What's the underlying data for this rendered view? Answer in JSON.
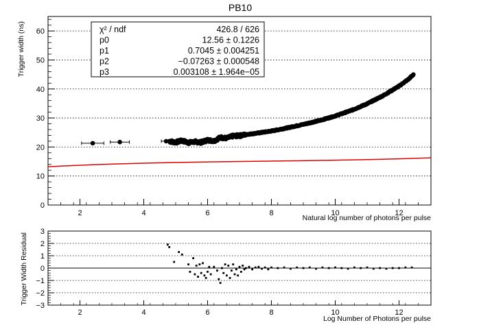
{
  "chart_data": [
    {
      "type": "scatter",
      "title": "PB10",
      "xlabel": "Natural log number of photons per pulse",
      "ylabel": "Trigger width (ns)",
      "xlim": [
        1,
        13
      ],
      "ylim": [
        0,
        65
      ],
      "xticks": [
        2,
        4,
        6,
        8,
        10,
        12
      ],
      "yticks": [
        0,
        10,
        20,
        30,
        40,
        50,
        60
      ],
      "grid": "horizontal-dotted",
      "fit": {
        "color": "#e00000",
        "model": "cubic",
        "params": [
          12.56,
          0.7045,
          -0.07263,
          0.003108
        ],
        "x_range": [
          1,
          13
        ]
      },
      "stats_box": {
        "placement": "top-left",
        "rows": [
          {
            "label": "χ² / ndf",
            "value": "426.8 / 626"
          },
          {
            "label": "p0",
            "value": "12.56 ± 0.1226"
          },
          {
            "label": "p1",
            "value": "0.7045 ± 0.004251"
          },
          {
            "label": "p2",
            "value": "−0.07263 ± 0.000548"
          },
          {
            "label": "p3",
            "value": "0.003108 ± 1.964e−05"
          }
        ]
      },
      "outliers": [
        {
          "x": 2.4,
          "y": 21.3,
          "xerr": 0.35
        },
        {
          "x": 3.25,
          "y": 21.7,
          "xerr": 0.3
        },
        {
          "x": 4.7,
          "y": 22.0,
          "xerr": 0.15
        }
      ],
      "band_points": [
        [
          4.8,
          22.0
        ],
        [
          5.0,
          21.6
        ],
        [
          5.2,
          22.2
        ],
        [
          5.4,
          21.5
        ],
        [
          5.6,
          21.8
        ],
        [
          5.8,
          21.6
        ],
        [
          6.0,
          22.4
        ],
        [
          6.2,
          22.1
        ],
        [
          6.4,
          23.3
        ],
        [
          6.6,
          23.0
        ],
        [
          6.8,
          23.8
        ],
        [
          7.0,
          23.9
        ],
        [
          7.2,
          24.3
        ],
        [
          7.5,
          24.7
        ],
        [
          8.0,
          25.5
        ],
        [
          8.5,
          26.6
        ],
        [
          9.0,
          27.8
        ],
        [
          9.5,
          29.1
        ],
        [
          10.0,
          30.7
        ],
        [
          10.5,
          32.6
        ],
        [
          11.0,
          34.9
        ],
        [
          11.5,
          37.7
        ],
        [
          12.0,
          41.0
        ],
        [
          12.3,
          43.4
        ],
        [
          12.45,
          45.0
        ]
      ]
    },
    {
      "type": "scatter",
      "xlabel": "Log Number of Photons per pulse",
      "ylabel": "Trigger Width Residual",
      "xlim": [
        1,
        13
      ],
      "ylim": [
        -3,
        3
      ],
      "xticks": [
        2,
        4,
        6,
        8,
        10,
        12
      ],
      "yticks": [
        -3,
        -2,
        -1,
        0,
        1,
        2,
        3
      ],
      "grid": "horizontal-dotted",
      "zero_line": true,
      "points": [
        [
          4.75,
          1.9
        ],
        [
          4.8,
          1.7
        ],
        [
          4.95,
          0.5
        ],
        [
          5.1,
          1.3
        ],
        [
          5.2,
          1.1
        ],
        [
          5.4,
          0.3
        ],
        [
          5.45,
          -0.3
        ],
        [
          5.55,
          0.8
        ],
        [
          5.6,
          -0.5
        ],
        [
          5.65,
          0.2
        ],
        [
          5.7,
          -0.7
        ],
        [
          5.75,
          0.3
        ],
        [
          5.8,
          -0.4
        ],
        [
          5.85,
          0.4
        ],
        [
          5.9,
          -0.6
        ],
        [
          5.95,
          -0.8
        ],
        [
          6.0,
          -0.3
        ],
        [
          6.05,
          0.1
        ],
        [
          6.1,
          -0.5
        ],
        [
          6.2,
          0.1
        ],
        [
          6.3,
          -0.2
        ],
        [
          6.35,
          -0.9
        ],
        [
          6.4,
          -1.2
        ],
        [
          6.45,
          0.0
        ],
        [
          6.5,
          -0.4
        ],
        [
          6.55,
          0.3
        ],
        [
          6.6,
          -0.6
        ],
        [
          6.65,
          0.2
        ],
        [
          6.7,
          -0.8
        ],
        [
          6.75,
          -0.2
        ],
        [
          6.8,
          0.3
        ],
        [
          6.85,
          -0.5
        ],
        [
          6.9,
          -0.1
        ],
        [
          6.95,
          -0.6
        ],
        [
          7.0,
          0.1
        ],
        [
          7.05,
          -0.3
        ],
        [
          7.1,
          0.2
        ],
        [
          7.15,
          -0.1
        ],
        [
          7.2,
          0.0
        ],
        [
          7.3,
          0.1
        ],
        [
          7.4,
          -0.1
        ],
        [
          7.5,
          0.05
        ],
        [
          7.6,
          0.1
        ],
        [
          7.7,
          -0.05
        ],
        [
          7.8,
          0.05
        ],
        [
          7.9,
          -0.1
        ],
        [
          8.0,
          0.05
        ],
        [
          8.2,
          0.0
        ],
        [
          8.4,
          0.05
        ],
        [
          8.6,
          -0.05
        ],
        [
          8.8,
          0.05
        ],
        [
          9.0,
          0.0
        ],
        [
          9.2,
          0.05
        ],
        [
          9.4,
          -0.05
        ],
        [
          9.6,
          0.05
        ],
        [
          9.8,
          0.0
        ],
        [
          10.0,
          0.05
        ],
        [
          10.2,
          0.0
        ],
        [
          10.4,
          -0.05
        ],
        [
          10.6,
          0.05
        ],
        [
          10.8,
          0.0
        ],
        [
          11.0,
          0.05
        ],
        [
          11.2,
          -0.05
        ],
        [
          11.4,
          0.0
        ],
        [
          11.6,
          -0.05
        ],
        [
          11.8,
          0.0
        ],
        [
          12.0,
          0.0
        ],
        [
          12.2,
          0.05
        ],
        [
          12.4,
          0.05
        ]
      ]
    }
  ]
}
